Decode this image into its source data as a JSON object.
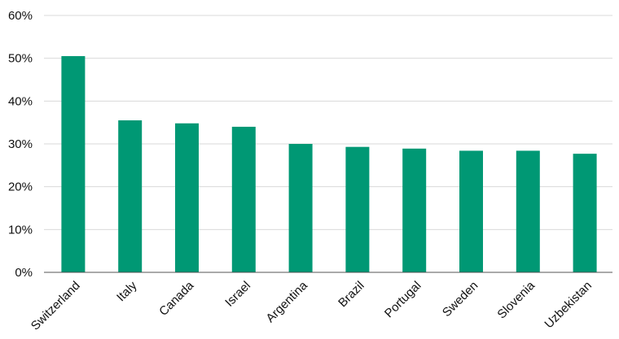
{
  "chart_data": {
    "type": "bar",
    "categories": [
      "Switzerland",
      "Italy",
      "Canada",
      "Israel",
      "Argentina",
      "Brazil",
      "Portugal",
      "Sweden",
      "Slovenia",
      "Uzbekistan"
    ],
    "values": [
      50.5,
      35.5,
      34.8,
      34.0,
      30.0,
      29.3,
      28.9,
      28.4,
      28.4,
      27.7
    ],
    "title": "",
    "xlabel": "",
    "ylabel": "",
    "ylim": [
      0,
      60
    ],
    "yticks": [
      0,
      10,
      20,
      30,
      40,
      50,
      60
    ],
    "ytick_labels": [
      "0%",
      "10%",
      "20%",
      "30%",
      "40%",
      "50%",
      "60%"
    ],
    "grid": true,
    "legend": "none",
    "bar_color": "#009874"
  }
}
